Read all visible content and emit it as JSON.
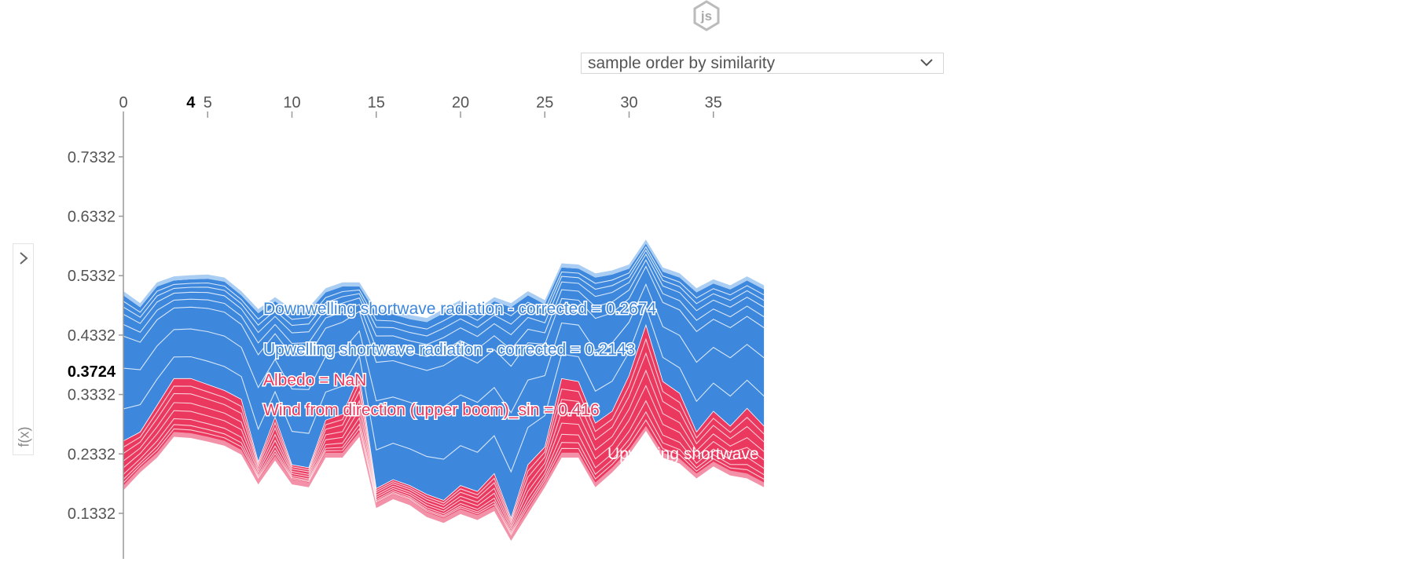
{
  "header": {
    "logo_text": "js",
    "order_select_value": "sample order by similarity",
    "toggle_icon": "chevron-right-icon"
  },
  "side_axis_label": "f(x)",
  "colors": {
    "positive": "#ea385f",
    "positive_light": "#f291a8",
    "negative": "#3d87dd",
    "negative_light": "#a9cdf3",
    "edge": "#ffffff",
    "axis": "#999999",
    "text": "#555555"
  },
  "chart_data": {
    "type": "area",
    "x_ticks": [
      0,
      5,
      10,
      15,
      20,
      25,
      30,
      35
    ],
    "highlight_x": 4,
    "y_ticks": [
      "0.1332",
      "0.2332",
      "0.3332",
      "0.4332",
      "0.5332",
      "0.6332",
      "0.7332"
    ],
    "highlight_y": "0.3724",
    "xlim": [
      0,
      38
    ],
    "ylim": [
      0.08,
      0.8
    ],
    "x": [
      0,
      1,
      2,
      3,
      4,
      5,
      6,
      7,
      8,
      9,
      10,
      11,
      12,
      13,
      14,
      15,
      16,
      17,
      18,
      19,
      20,
      21,
      22,
      23,
      24,
      25,
      26,
      27,
      28,
      29,
      30,
      31,
      32,
      33,
      34,
      35,
      36,
      37,
      38
    ],
    "base": [
      0.18,
      0.21,
      0.235,
      0.27,
      0.268,
      0.262,
      0.255,
      0.24,
      0.19,
      0.23,
      0.19,
      0.185,
      0.235,
      0.235,
      0.27,
      0.15,
      0.165,
      0.155,
      0.135,
      0.125,
      0.14,
      0.13,
      0.145,
      0.095,
      0.14,
      0.185,
      0.235,
      0.235,
      0.185,
      0.21,
      0.24,
      0.28,
      0.235,
      0.225,
      0.2,
      0.22,
      0.205,
      0.2,
      0.185
    ],
    "split": [
      0.255,
      0.27,
      0.315,
      0.36,
      0.36,
      0.35,
      0.34,
      0.325,
      0.22,
      0.295,
      0.215,
      0.21,
      0.29,
      0.3,
      0.365,
      0.175,
      0.19,
      0.18,
      0.165,
      0.155,
      0.18,
      0.17,
      0.2,
      0.125,
      0.215,
      0.245,
      0.36,
      0.355,
      0.285,
      0.305,
      0.365,
      0.45,
      0.355,
      0.335,
      0.27,
      0.305,
      0.28,
      0.31,
      0.28
    ],
    "top": [
      0.5,
      0.48,
      0.515,
      0.525,
      0.527,
      0.528,
      0.523,
      0.5,
      0.47,
      0.49,
      0.47,
      0.473,
      0.505,
      0.515,
      0.515,
      0.47,
      0.468,
      0.46,
      0.455,
      0.47,
      0.485,
      0.47,
      0.49,
      0.48,
      0.5,
      0.485,
      0.547,
      0.545,
      0.53,
      0.535,
      0.545,
      0.587,
      0.54,
      0.53,
      0.505,
      0.52,
      0.51,
      0.525,
      0.51
    ],
    "annotations": [
      {
        "text": "Downwelling shortwave radiation - corrected = 0.2674",
        "sign": "negative"
      },
      {
        "text": "Upwelling shortwave radiation - corrected = 0.2143",
        "sign": "negative"
      },
      {
        "text": "Albedo = NaN",
        "sign": "positive"
      },
      {
        "text": "Wind from direction (upper boom)_sin = 0.416",
        "sign": "positive"
      },
      {
        "text": "Upwelling shortwave radiation - corrected",
        "sign": "hover"
      }
    ]
  }
}
